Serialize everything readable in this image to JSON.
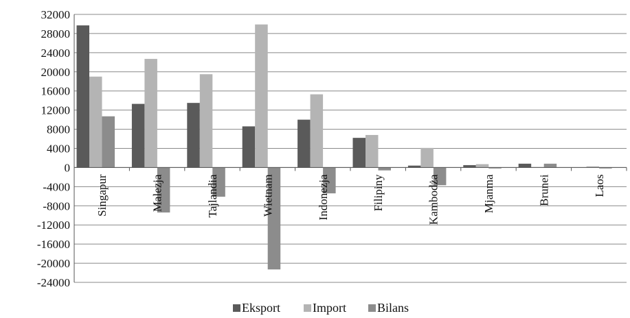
{
  "chart_data": {
    "type": "bar",
    "title": "",
    "xlabel": "",
    "ylabel": "",
    "categories": [
      "Singapur",
      "Malezja",
      "Tajlandia",
      "Wietnam",
      "Indonezja",
      "Filipiny",
      "Kambodża",
      "Mjanma",
      "Brunei",
      "Laos"
    ],
    "series": [
      {
        "name": "Eksport",
        "color": "#5a5a5a",
        "values": [
          29700,
          13300,
          13500,
          8600,
          10000,
          6200,
          400,
          500,
          800,
          50
        ]
      },
      {
        "name": "Import",
        "color": "#b4b4b4",
        "values": [
          19000,
          22700,
          19500,
          29900,
          15300,
          6800,
          4100,
          700,
          100,
          250
        ]
      },
      {
        "name": "Bilans",
        "color": "#8c8c8c",
        "values": [
          10700,
          -9400,
          -6100,
          -21300,
          -5400,
          -600,
          -3700,
          -200,
          800,
          -200
        ]
      }
    ],
    "ylim": [
      -24000,
      32000
    ],
    "yticks": [
      32000,
      28000,
      24000,
      20000,
      16000,
      12000,
      8000,
      4000,
      0,
      -4000,
      -8000,
      -12000,
      -16000,
      -20000,
      -24000
    ],
    "grid": true,
    "legend_position": "bottom"
  }
}
